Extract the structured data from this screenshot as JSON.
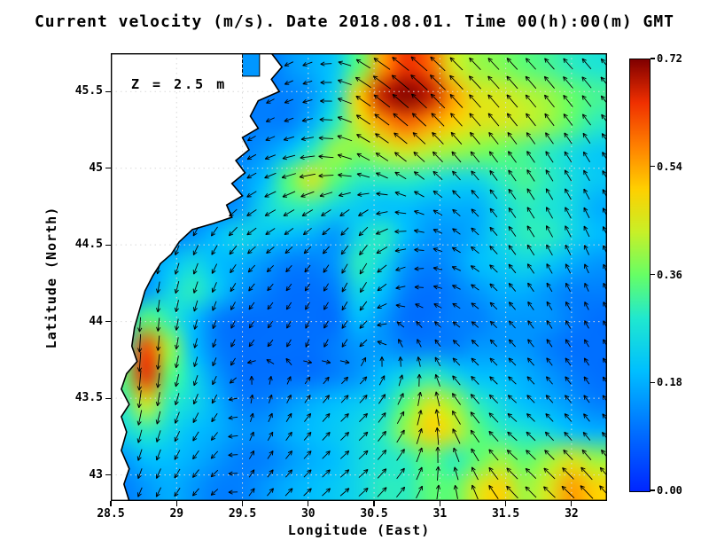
{
  "title": "Current velocity (m/s). Date 2018.08.01. Time 00(h):00(m) GMT",
  "annotation": "Z = 2.5 m",
  "axes": {
    "x": {
      "label": "Longitude (East)",
      "tick_labels": [
        "28.5",
        "29",
        "29.5",
        "30",
        "30.5",
        "31",
        "31.5",
        "32"
      ],
      "tick_values": [
        28.5,
        29,
        29.5,
        30,
        30.5,
        31,
        31.5,
        32
      ],
      "range": [
        28.5,
        32.27
      ]
    },
    "y": {
      "label": "Latitude (North)",
      "tick_labels": [
        "43",
        "43.5",
        "44",
        "44.5",
        "45",
        "45.5"
      ],
      "tick_values": [
        43,
        43.5,
        44,
        44.5,
        45,
        45.5
      ],
      "range": [
        42.83,
        45.75
      ]
    }
  },
  "colorbar": {
    "tick_labels": [
      "0.00",
      "0.18",
      "0.36",
      "0.54",
      "0.72"
    ],
    "tick_values": [
      0,
      0.18,
      0.36,
      0.54,
      0.72
    ],
    "min": 0,
    "max": 0.72
  },
  "colors": {
    "background": "#ffffff",
    "land": "#ffffff",
    "coastline": "#000000",
    "gridline": "#d9d9d9",
    "arrow": "#000000",
    "frame": "#000000",
    "text": "#000000"
  },
  "chart_data": {
    "type": "heatmap",
    "quantity": "current speed (m/s)",
    "depth_label": "Z = 2.5 m",
    "date": "2018.08.01",
    "time": "00(h):00(m) GMT",
    "lon_range": [
      28.5,
      32.27
    ],
    "lat_range": [
      42.83,
      45.75
    ],
    "speed_max": 0.72,
    "speed_grid_north_to_south": [
      [
        0.1,
        0.1,
        0.1,
        0.1,
        0.1,
        0.1,
        0.1,
        0.15,
        0.18,
        0.22,
        0.35,
        0.55,
        0.65,
        0.6,
        0.45,
        0.4,
        0.38,
        0.35,
        0.33,
        0.3,
        0.28
      ],
      [
        0.1,
        0.1,
        0.1,
        0.1,
        0.1,
        0.1,
        0.12,
        0.12,
        0.15,
        0.25,
        0.5,
        0.68,
        0.72,
        0.68,
        0.55,
        0.46,
        0.45,
        0.42,
        0.4,
        0.36,
        0.33
      ],
      [
        0.1,
        0.1,
        0.1,
        0.1,
        0.1,
        0.12,
        0.12,
        0.12,
        0.18,
        0.3,
        0.45,
        0.55,
        0.6,
        0.55,
        0.5,
        0.46,
        0.45,
        0.43,
        0.4,
        0.35,
        0.3
      ],
      [
        0.1,
        0.1,
        0.1,
        0.1,
        0.1,
        0.12,
        0.15,
        0.2,
        0.3,
        0.4,
        0.38,
        0.42,
        0.45,
        0.42,
        0.4,
        0.38,
        0.36,
        0.33,
        0.3,
        0.26,
        0.22
      ],
      [
        0.1,
        0.1,
        0.1,
        0.1,
        0.1,
        0.15,
        0.2,
        0.35,
        0.45,
        0.35,
        0.3,
        0.3,
        0.3,
        0.28,
        0.25,
        0.25,
        0.3,
        0.33,
        0.3,
        0.26,
        0.22
      ],
      [
        0.1,
        0.1,
        0.1,
        0.1,
        0.12,
        0.15,
        0.25,
        0.3,
        0.3,
        0.25,
        0.22,
        0.2,
        0.2,
        0.18,
        0.18,
        0.18,
        0.25,
        0.3,
        0.28,
        0.25,
        0.18
      ],
      [
        0.1,
        0.1,
        0.12,
        0.15,
        0.2,
        0.25,
        0.22,
        0.2,
        0.18,
        0.15,
        0.25,
        0.3,
        0.2,
        0.15,
        0.15,
        0.18,
        0.25,
        0.3,
        0.3,
        0.25,
        0.2
      ],
      [
        0.1,
        0.15,
        0.2,
        0.25,
        0.2,
        0.18,
        0.15,
        0.12,
        0.12,
        0.15,
        0.3,
        0.25,
        0.15,
        0.12,
        0.15,
        0.2,
        0.22,
        0.25,
        0.22,
        0.18,
        0.15
      ],
      [
        0.1,
        0.15,
        0.25,
        0.3,
        0.22,
        0.15,
        0.12,
        0.1,
        0.1,
        0.12,
        0.25,
        0.2,
        0.12,
        0.1,
        0.12,
        0.15,
        0.18,
        0.18,
        0.15,
        0.12,
        0.12
      ],
      [
        0.2,
        0.35,
        0.3,
        0.2,
        0.12,
        0.1,
        0.1,
        0.1,
        0.1,
        0.1,
        0.2,
        0.15,
        0.1,
        0.1,
        0.12,
        0.12,
        0.15,
        0.15,
        0.15,
        0.12,
        0.1
      ],
      [
        0.3,
        0.62,
        0.4,
        0.2,
        0.12,
        0.1,
        0.1,
        0.1,
        0.1,
        0.12,
        0.15,
        0.15,
        0.12,
        0.12,
        0.12,
        0.15,
        0.15,
        0.15,
        0.12,
        0.1,
        0.1
      ],
      [
        0.35,
        0.65,
        0.35,
        0.25,
        0.15,
        0.1,
        0.1,
        0.1,
        0.1,
        0.12,
        0.15,
        0.2,
        0.25,
        0.3,
        0.25,
        0.2,
        0.2,
        0.18,
        0.15,
        0.12,
        0.1
      ],
      [
        0.3,
        0.45,
        0.3,
        0.25,
        0.18,
        0.12,
        0.12,
        0.15,
        0.18,
        0.2,
        0.22,
        0.25,
        0.35,
        0.45,
        0.4,
        0.3,
        0.25,
        0.2,
        0.18,
        0.15,
        0.12
      ],
      [
        0.25,
        0.3,
        0.25,
        0.2,
        0.18,
        0.15,
        0.15,
        0.18,
        0.2,
        0.22,
        0.25,
        0.3,
        0.4,
        0.5,
        0.45,
        0.35,
        0.3,
        0.28,
        0.25,
        0.2,
        0.18
      ],
      [
        0.15,
        0.2,
        0.2,
        0.18,
        0.15,
        0.12,
        0.12,
        0.15,
        0.18,
        0.2,
        0.25,
        0.28,
        0.3,
        0.35,
        0.3,
        0.35,
        0.4,
        0.35,
        0.4,
        0.45,
        0.4
      ],
      [
        0.12,
        0.15,
        0.18,
        0.15,
        0.12,
        0.12,
        0.15,
        0.18,
        0.2,
        0.22,
        0.25,
        0.3,
        0.3,
        0.35,
        0.35,
        0.45,
        0.5,
        0.4,
        0.45,
        0.55,
        0.5
      ]
    ],
    "vector_angles_deg_ccw_from_east_north_to_south": [
      [
        225,
        225,
        225,
        215,
        200,
        150,
        140,
        135,
        133,
        132,
        130
      ],
      [
        225,
        225,
        225,
        210,
        195,
        145,
        138,
        132,
        130,
        128,
        128
      ],
      [
        240,
        235,
        225,
        205,
        185,
        155,
        140,
        130,
        125,
        122,
        120
      ],
      [
        250,
        245,
        235,
        210,
        215,
        225,
        170,
        140,
        125,
        118,
        115
      ],
      [
        265,
        258,
        248,
        225,
        235,
        245,
        195,
        155,
        130,
        118,
        112
      ],
      [
        270,
        265,
        252,
        235,
        245,
        230,
        120,
        140,
        132,
        122,
        118
      ],
      [
        268,
        262,
        245,
        80,
        55,
        45,
        70,
        130,
        138,
        130,
        124
      ],
      [
        258,
        250,
        230,
        60,
        48,
        42,
        60,
        115,
        138,
        134,
        128
      ],
      [
        250,
        242,
        222,
        50,
        42,
        40,
        52,
        100,
        132,
        138,
        132
      ]
    ],
    "colormap_stops": [
      [
        0.0,
        "#0026ff"
      ],
      [
        0.14,
        "#0070ff"
      ],
      [
        0.28,
        "#00c0ff"
      ],
      [
        0.4,
        "#20e8d0"
      ],
      [
        0.5,
        "#66ff66"
      ],
      [
        0.6,
        "#c8f028"
      ],
      [
        0.7,
        "#ffd000"
      ],
      [
        0.8,
        "#ff8000"
      ],
      [
        0.9,
        "#f03000"
      ],
      [
        1.0,
        "#800000"
      ]
    ],
    "land_polygon_lonlat": [
      [
        28.5,
        45.75
      ],
      [
        29.72,
        45.75
      ],
      [
        29.8,
        45.66
      ],
      [
        29.72,
        45.58
      ],
      [
        29.78,
        45.5
      ],
      [
        29.62,
        45.44
      ],
      [
        29.56,
        45.34
      ],
      [
        29.62,
        45.26
      ],
      [
        29.5,
        45.2
      ],
      [
        29.55,
        45.12
      ],
      [
        29.45,
        45.05
      ],
      [
        29.52,
        44.97
      ],
      [
        29.42,
        44.9
      ],
      [
        29.5,
        44.82
      ],
      [
        29.38,
        44.76
      ],
      [
        29.42,
        44.68
      ],
      [
        29.28,
        44.64
      ],
      [
        29.12,
        44.6
      ],
      [
        29.02,
        44.52
      ],
      [
        28.96,
        44.44
      ],
      [
        28.88,
        44.38
      ],
      [
        28.82,
        44.3
      ],
      [
        28.76,
        44.2
      ],
      [
        28.72,
        44.08
      ],
      [
        28.68,
        43.96
      ],
      [
        28.66,
        43.84
      ],
      [
        28.7,
        43.74
      ],
      [
        28.62,
        43.66
      ],
      [
        28.58,
        43.56
      ],
      [
        28.64,
        43.46
      ],
      [
        28.58,
        43.38
      ],
      [
        28.62,
        43.28
      ],
      [
        28.58,
        43.16
      ],
      [
        28.64,
        43.04
      ],
      [
        28.6,
        42.94
      ],
      [
        28.64,
        42.83
      ],
      [
        28.5,
        42.83
      ]
    ],
    "water_inlet_lonlat_rect": [
      29.5,
      45.6,
      29.63,
      45.75
    ]
  }
}
